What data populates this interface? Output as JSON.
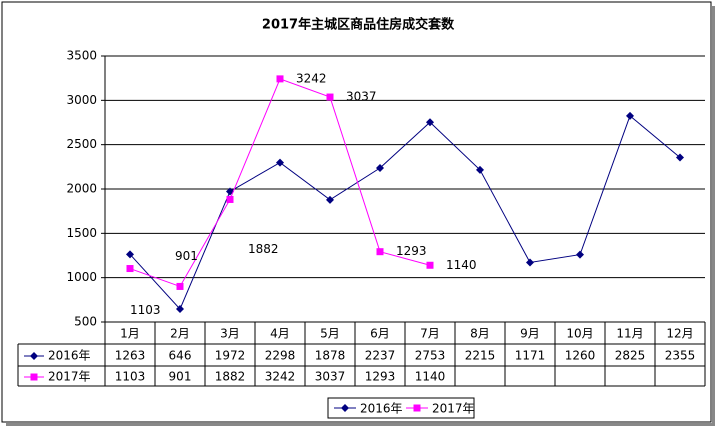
{
  "chart_data": {
    "type": "line",
    "title": "2017年主城区商品住房成交套数",
    "categories": [
      "1月",
      "2月",
      "3月",
      "4月",
      "5月",
      "6月",
      "7月",
      "8月",
      "9月",
      "10月",
      "11月",
      "12月"
    ],
    "series": [
      {
        "name": "2016年",
        "color": "#000080",
        "marker": "diamond",
        "values": [
          1263,
          646,
          1972,
          2298,
          1878,
          2237,
          2753,
          2215,
          1171,
          1260,
          2825,
          2355
        ]
      },
      {
        "name": "2017年",
        "color": "#ff00ff",
        "marker": "square",
        "data_labels": true,
        "values": [
          1103,
          901,
          1882,
          3242,
          3037,
          1293,
          1140,
          null,
          null,
          null,
          null,
          null
        ]
      }
    ],
    "ylim": [
      500,
      3500
    ],
    "yticks": [
      500,
      1000,
      1500,
      2000,
      2500,
      3000,
      3500
    ],
    "grid": true,
    "legend": "bottom"
  }
}
